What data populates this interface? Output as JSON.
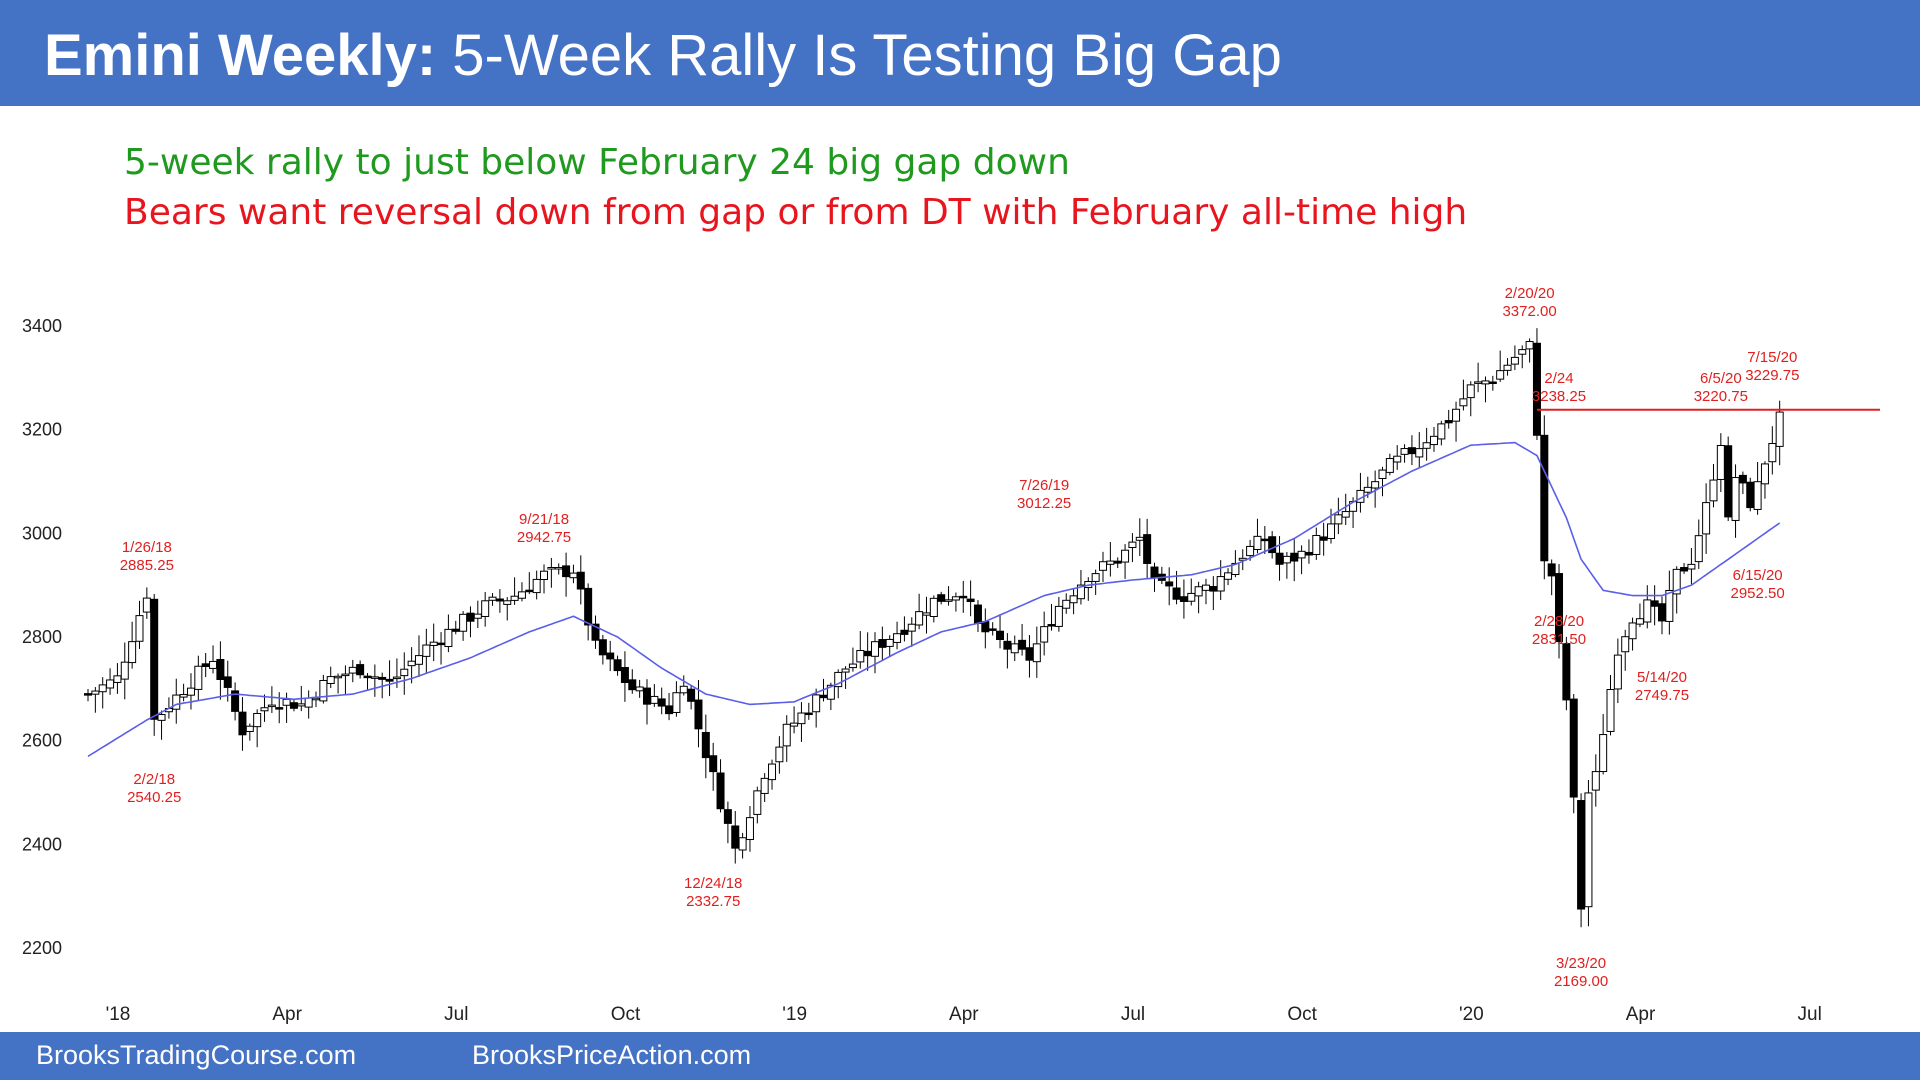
{
  "header": {
    "title_bold": "Emini Weekly:",
    "title_rest": " 5-Week Rally Is Testing Big Gap"
  },
  "subtitles": {
    "line1": "5-week rally to just below February 24 big gap down",
    "line2": "Bears want reversal down from gap or from DT with February all-time high"
  },
  "footer": {
    "left": "BrooksTradingCourse.com",
    "right": "BrooksPriceAction.com"
  },
  "colors": {
    "banner": "#4472c4",
    "bull_text": "#1f9a1f",
    "bear_text": "#e8141e",
    "moving_average": "#5a5ee8",
    "resistance_line": "#e02020",
    "annotation": "#e02020"
  },
  "chart_data": {
    "type": "candlestick",
    "ylim": [
      2100,
      3450
    ],
    "yticks": [
      2200,
      2400,
      2600,
      2800,
      3000,
      3200,
      3400
    ],
    "xticks": [
      "'18",
      "Apr",
      "Jul",
      "Oct",
      "'19",
      "Apr",
      "Jul",
      "Oct",
      "'20",
      "Apr",
      "Jul"
    ],
    "grid": false,
    "resistance_level": 3238.25,
    "annotations": [
      {
        "date": "1/26/18",
        "price": "2885.25"
      },
      {
        "date": "2/2/18",
        "price": "2540.25"
      },
      {
        "date": "9/21/18",
        "price": "2942.75"
      },
      {
        "date": "12/24/18",
        "price": "2332.75"
      },
      {
        "date": "7/26/19",
        "price": "3012.25"
      },
      {
        "date": "2/20/20",
        "price": "3372.00"
      },
      {
        "date": "2/24",
        "price": "3238.25"
      },
      {
        "date": "2/28/20",
        "price": "2831.50"
      },
      {
        "date": "3/23/20",
        "price": "2169.00"
      },
      {
        "date": "5/14/20",
        "price": "2749.75"
      },
      {
        "date": "6/5/20",
        "price": "3220.75"
      },
      {
        "date": "6/15/20",
        "price": "2952.50"
      },
      {
        "date": "7/15/20",
        "price": "3229.75"
      }
    ],
    "price_path": [
      [
        0,
        2690
      ],
      [
        4,
        2720
      ],
      [
        8,
        2885
      ],
      [
        9,
        2640
      ],
      [
        13,
        2700
      ],
      [
        17,
        2760
      ],
      [
        21,
        2620
      ],
      [
        25,
        2680
      ],
      [
        29,
        2670
      ],
      [
        33,
        2720
      ],
      [
        37,
        2740
      ],
      [
        41,
        2710
      ],
      [
        46,
        2780
      ],
      [
        50,
        2820
      ],
      [
        54,
        2860
      ],
      [
        58,
        2880
      ],
      [
        62,
        2920
      ],
      [
        66,
        2930
      ],
      [
        69,
        2780
      ],
      [
        74,
        2700
      ],
      [
        79,
        2660
      ],
      [
        81,
        2720
      ],
      [
        85,
        2530
      ],
      [
        88,
        2390
      ],
      [
        92,
        2540
      ],
      [
        95,
        2620
      ],
      [
        99,
        2680
      ],
      [
        103,
        2740
      ],
      [
        107,
        2780
      ],
      [
        111,
        2820
      ],
      [
        115,
        2870
      ],
      [
        119,
        2890
      ],
      [
        121,
        2820
      ],
      [
        125,
        2780
      ],
      [
        128,
        2760
      ],
      [
        132,
        2860
      ],
      [
        136,
        2920
      ],
      [
        140,
        2950
      ],
      [
        143,
        2990
      ],
      [
        145,
        2900
      ],
      [
        149,
        2880
      ],
      [
        153,
        2900
      ],
      [
        157,
        2960
      ],
      [
        160,
        2990
      ],
      [
        162,
        2940
      ],
      [
        165,
        2960
      ],
      [
        169,
        3010
      ],
      [
        173,
        3070
      ],
      [
        177,
        3130
      ],
      [
        181,
        3170
      ],
      [
        185,
        3220
      ],
      [
        188,
        3280
      ],
      [
        191,
        3300
      ],
      [
        194,
        3340
      ],
      [
        196,
        3360
      ],
      [
        197,
        3200
      ],
      [
        198,
        2940
      ],
      [
        199,
        2920
      ],
      [
        200,
        2780
      ],
      [
        201,
        2680
      ],
      [
        202,
        2480
      ],
      [
        203,
        2280
      ],
      [
        204,
        2500
      ],
      [
        205,
        2530
      ],
      [
        206,
        2620
      ],
      [
        208,
        2780
      ],
      [
        210,
        2840
      ],
      [
        212,
        2860
      ],
      [
        214,
        2830
      ],
      [
        216,
        2920
      ],
      [
        218,
        2950
      ],
      [
        220,
        3050
      ],
      [
        222,
        3180
      ],
      [
        223,
        3020
      ],
      [
        224,
        3110
      ],
      [
        226,
        3060
      ],
      [
        227,
        3090
      ],
      [
        228,
        3140
      ],
      [
        229,
        3180
      ],
      [
        230,
        3220
      ]
    ],
    "moving_average": [
      [
        0,
        2570
      ],
      [
        8,
        2640
      ],
      [
        12,
        2670
      ],
      [
        20,
        2690
      ],
      [
        28,
        2680
      ],
      [
        36,
        2690
      ],
      [
        44,
        2720
      ],
      [
        52,
        2760
      ],
      [
        60,
        2810
      ],
      [
        66,
        2840
      ],
      [
        72,
        2800
      ],
      [
        78,
        2740
      ],
      [
        84,
        2690
      ],
      [
        90,
        2670
      ],
      [
        96,
        2675
      ],
      [
        102,
        2710
      ],
      [
        110,
        2770
      ],
      [
        116,
        2810
      ],
      [
        122,
        2830
      ],
      [
        130,
        2880
      ],
      [
        136,
        2900
      ],
      [
        142,
        2910
      ],
      [
        150,
        2920
      ],
      [
        156,
        2940
      ],
      [
        164,
        2990
      ],
      [
        172,
        3060
      ],
      [
        180,
        3120
      ],
      [
        188,
        3170
      ],
      [
        194,
        3175
      ],
      [
        197,
        3150
      ],
      [
        199,
        3090
      ],
      [
        201,
        3030
      ],
      [
        203,
        2950
      ],
      [
        206,
        2890
      ],
      [
        210,
        2880
      ],
      [
        214,
        2880
      ],
      [
        218,
        2900
      ],
      [
        222,
        2940
      ],
      [
        226,
        2980
      ],
      [
        230,
        3020
      ]
    ]
  }
}
